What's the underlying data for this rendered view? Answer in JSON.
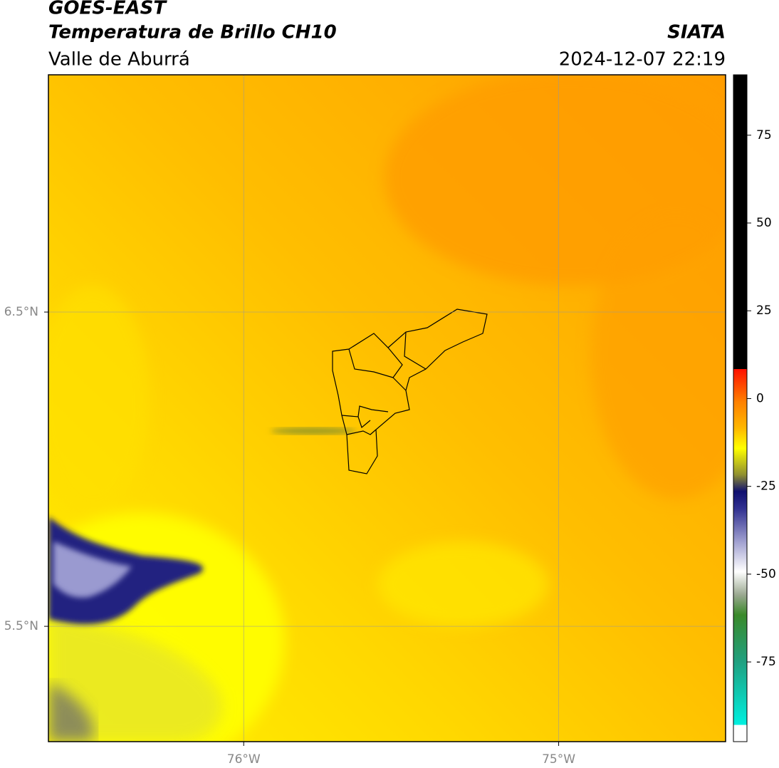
{
  "header": {
    "line1": "GOES-EAST",
    "line2": "Temperatura de Brillo CH10",
    "line3": "Valle de Aburrá",
    "agency": "SIATA",
    "timestamp": "2024-12-07 22:19"
  },
  "map": {
    "xlim": [
      -76.62,
      -74.47
    ],
    "ylim": [
      5.133,
      7.255
    ],
    "xticks": [
      {
        "value": -76,
        "label": "76°W"
      },
      {
        "value": -75,
        "label": "75°W"
      }
    ],
    "yticks": [
      {
        "value": 6.5,
        "label": "6.5°N"
      },
      {
        "value": 5.5,
        "label": "5.5°N"
      }
    ],
    "grid": true
  },
  "colorbar": {
    "lim": [
      -97.7,
      92.2
    ],
    "ticks": [
      75,
      50,
      25,
      0,
      -25,
      -50,
      -75
    ]
  }
}
